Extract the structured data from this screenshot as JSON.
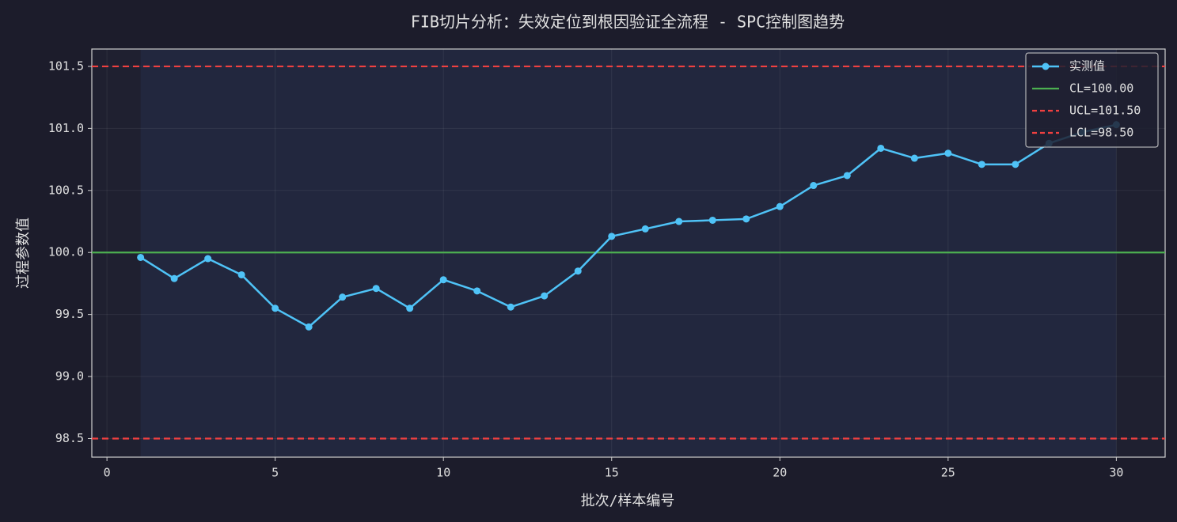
{
  "chart_data": {
    "type": "line",
    "title": "FIB切片分析：失效定位到根因验证全流程 - SPC控制图趋势",
    "x_label": "批次/样本编号",
    "y_label": "过程参数值",
    "x": [
      1,
      2,
      3,
      4,
      5,
      6,
      7,
      8,
      9,
      10,
      11,
      12,
      13,
      14,
      15,
      16,
      17,
      18,
      19,
      20,
      21,
      22,
      23,
      24,
      25,
      26,
      27,
      28,
      29,
      30
    ],
    "series": [
      {
        "name": "实测值",
        "color": "#4fc3f7",
        "values": [
          99.96,
          99.79,
          99.95,
          99.82,
          99.55,
          99.4,
          99.64,
          99.71,
          99.55,
          99.78,
          99.69,
          99.56,
          99.65,
          99.85,
          100.13,
          100.19,
          100.25,
          100.26,
          100.27,
          100.37,
          100.54,
          100.62,
          100.84,
          100.76,
          100.8,
          100.71,
          100.71,
          100.88,
          100.97,
          101.03
        ]
      }
    ],
    "control_lines": [
      {
        "name": "CL=100.00",
        "value": 100,
        "color": "#4caf50",
        "style": "solid"
      },
      {
        "name": "UCL=101.50",
        "value": 101.5,
        "color": "#f04040",
        "style": "dashed"
      },
      {
        "name": "LCL=98.50",
        "value": 98.5,
        "color": "#f04040",
        "style": "dashed"
      }
    ],
    "xlim": [
      -0.45,
      31.45
    ],
    "ylim": [
      98.35,
      101.64
    ],
    "xticks": [
      0,
      5,
      10,
      15,
      20,
      25,
      30
    ],
    "yticks": [
      {
        "value": 98.5,
        "label": "98.5"
      },
      {
        "value": 99,
        "label": "99.0"
      },
      99.5,
      {
        "value": 100,
        "label": "100.0"
      },
      100.5,
      {
        "value": 101,
        "label": "101.0"
      },
      101.5
    ],
    "grid": true,
    "legend": "upper right"
  }
}
